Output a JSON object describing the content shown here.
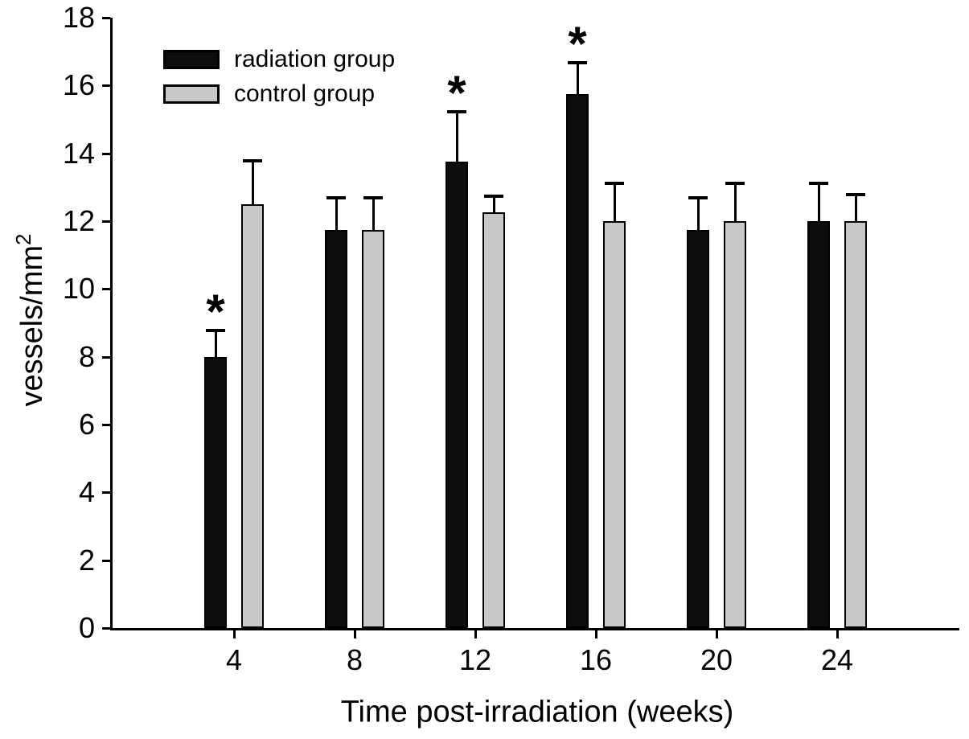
{
  "chart_data": {
    "type": "bar",
    "title": "",
    "xlabel": "Time post-irradiation (weeks)",
    "ylabel": "vessels/mm",
    "ylabel_superscript": "2",
    "ylabel_display": "vessels/mm²",
    "categories": [
      "4",
      "8",
      "12",
      "16",
      "20",
      "24"
    ],
    "yticks": [
      0,
      2,
      4,
      6,
      8,
      10,
      12,
      14,
      16,
      18
    ],
    "ylim": [
      0,
      18
    ],
    "grid": false,
    "legend_position": "top-left-inside",
    "significance_marker": "*",
    "colors": {
      "bar_black": "#0d0d0d",
      "bar_gray": "#c8c8c8",
      "axis": "#000000",
      "background": "#ffffff"
    },
    "series": [
      {
        "name": "radiation group",
        "color": "#0d0d0d",
        "values": [
          8.0,
          11.75,
          13.75,
          15.75,
          11.75,
          12.0
        ],
        "errors_plus": [
          0.8,
          0.95,
          1.5,
          0.95,
          0.95,
          1.15
        ],
        "significant": [
          true,
          false,
          true,
          true,
          false,
          false
        ]
      },
      {
        "name": "control group",
        "color": "#c8c8c8",
        "values": [
          12.5,
          11.75,
          12.25,
          12.0,
          12.0,
          12.0
        ],
        "errors_plus": [
          1.3,
          0.95,
          0.5,
          1.15,
          1.15,
          0.8
        ],
        "significant": [
          false,
          false,
          false,
          false,
          false,
          false
        ]
      }
    ]
  }
}
